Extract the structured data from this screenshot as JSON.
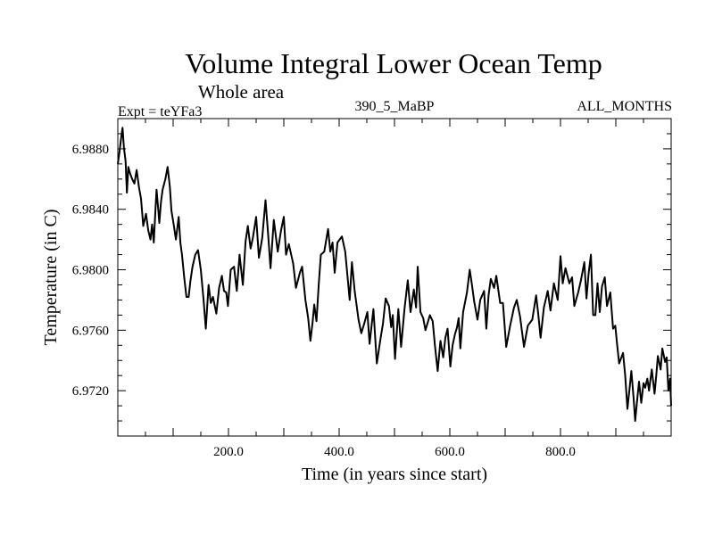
{
  "chart_data": {
    "type": "line",
    "title": "Volume Integral Lower Ocean Temp",
    "subtitle": "Whole area",
    "header_left": "Expt = teYFa3",
    "header_center": "390_5_MaBP",
    "header_right": "ALL_MONTHS",
    "xlabel": "Time (in years since start)",
    "ylabel": "Temperature (in C)",
    "xlim": [
      0,
      1000
    ],
    "ylim": [
      6.969,
      6.99
    ],
    "x_major_ticks": [
      200,
      400,
      600,
      800
    ],
    "x_tick_labels": [
      "200.0",
      "400.0",
      "600.0",
      "800.0"
    ],
    "x_minor_step": 50,
    "y_major_ticks": [
      6.988,
      6.984,
      6.98,
      6.976,
      6.972
    ],
    "y_tick_labels": [
      "6.9880",
      "6.9840",
      "6.9800",
      "6.9760",
      "6.9720"
    ],
    "y_minor_step": 0.001,
    "grid": false,
    "line_color": "#000000",
    "series": [
      {
        "name": "Volume Integral Lower Ocean Temp",
        "x": [
          0,
          3,
          6,
          8.5,
          11,
          14,
          16.5,
          19,
          22,
          26,
          30,
          34,
          38,
          42,
          46,
          51,
          55,
          59,
          62,
          65,
          68,
          70,
          73,
          75,
          78,
          81,
          86,
          90,
          94,
          97,
          101,
          105,
          110,
          113,
          116,
          120,
          124,
          128,
          131,
          135,
          140,
          145,
          150,
          155,
          159,
          164,
          168,
          172,
          178,
          183,
          188,
          192,
          196,
          199,
          204,
          210,
          215,
          220,
          226,
          231,
          235,
          240,
          244,
          250,
          255,
          261,
          267,
          272,
          276,
          282,
          289,
          295,
          300,
          304,
          309,
          317,
          322,
          329,
          333,
          339,
          344,
          348,
          352,
          355,
          359,
          363,
          367,
          373,
          380,
          384,
          388,
          392,
          397,
          401,
          405,
          411,
          415,
          419,
          423,
          428,
          435,
          440,
          445,
          451,
          455,
          462,
          468,
          475,
          479,
          484,
          490,
          494,
          497,
          501,
          507,
          512,
          518,
          524,
          529,
          535,
          539,
          542,
          547,
          552,
          556,
          564,
          569,
          573,
          578,
          583,
          588,
          592,
          596,
          601,
          605,
          609,
          613,
          616,
          619,
          624,
          631,
          636,
          640,
          644,
          650,
          655,
          662,
          666,
          670,
          674,
          680,
          684,
          691,
          696,
          702,
          709,
          716,
          721,
          727,
          734,
          741,
          749,
          756,
          760,
          764,
          770,
          777,
          782,
          788,
          795,
          800,
          804,
          809,
          816,
          821,
          825,
          832,
          837,
          843,
          847,
          851,
          855,
          859,
          863,
          867,
          871,
          875,
          880,
          884,
          890,
          895,
          899,
          902,
          906,
          913,
          917,
          921,
          925,
          928,
          932,
          935,
          938,
          942,
          946,
          950,
          953,
          957,
          960,
          965,
          970,
          973,
          976,
          981,
          984,
          989,
          992,
          995,
          998,
          1000
        ],
        "y": [
          6.987,
          6.9878,
          6.9887,
          6.9894,
          6.9881,
          6.9872,
          6.9851,
          6.9868,
          6.9864,
          6.986,
          6.9857,
          6.9866,
          6.9855,
          6.9847,
          6.9829,
          6.9837,
          6.9826,
          6.982,
          6.983,
          6.9818,
          6.984,
          6.9853,
          6.984,
          6.9831,
          6.9845,
          6.9853,
          6.986,
          6.9868,
          6.9855,
          6.9839,
          6.983,
          6.982,
          6.9835,
          6.9818,
          6.981,
          6.9795,
          6.9782,
          6.9782,
          6.9792,
          6.9802,
          6.981,
          6.9813,
          6.98,
          6.978,
          6.9761,
          6.979,
          6.9778,
          6.9782,
          6.9771,
          6.9788,
          6.9796,
          6.9786,
          6.9785,
          6.9776,
          6.98,
          6.9802,
          6.9786,
          6.981,
          6.979,
          6.9819,
          6.9829,
          6.9814,
          6.9821,
          6.9835,
          6.9808,
          6.9821,
          6.9846,
          6.9822,
          6.9801,
          6.9833,
          6.9812,
          6.9826,
          6.9835,
          6.981,
          6.9817,
          6.9804,
          6.9788,
          6.9798,
          6.9802,
          6.978,
          6.9768,
          6.9753,
          6.9765,
          6.9777,
          6.9766,
          6.979,
          6.981,
          6.9812,
          6.9827,
          6.9812,
          6.9818,
          6.9798,
          6.9818,
          6.982,
          6.9822,
          6.9812,
          6.9796,
          6.978,
          6.9805,
          6.9786,
          6.9767,
          6.9758,
          6.9764,
          6.9772,
          6.9751,
          6.9774,
          6.9738,
          6.9755,
          6.9764,
          6.9781,
          6.9776,
          6.9762,
          6.977,
          6.9741,
          6.9774,
          6.9749,
          6.9774,
          6.9793,
          6.9772,
          6.9787,
          6.9775,
          6.9802,
          6.9772,
          6.9768,
          6.976,
          6.977,
          6.9766,
          6.975,
          6.9733,
          6.9753,
          6.9742,
          6.9755,
          6.9761,
          6.9736,
          6.975,
          6.9757,
          6.9762,
          6.9768,
          6.9748,
          6.9772,
          6.9785,
          6.98,
          6.979,
          6.9779,
          6.9767,
          6.978,
          6.9786,
          6.9761,
          6.9783,
          6.9794,
          6.9788,
          6.9796,
          6.9778,
          6.9778,
          6.9749,
          6.9763,
          6.9775,
          6.978,
          6.9769,
          6.9749,
          6.9763,
          6.9767,
          6.9783,
          6.977,
          6.9755,
          6.9775,
          6.9786,
          6.9773,
          6.9791,
          6.978,
          6.9809,
          6.9791,
          6.9801,
          6.9791,
          6.9795,
          6.9776,
          6.9785,
          6.9793,
          6.9805,
          6.9781,
          6.9798,
          6.981,
          6.977,
          6.977,
          6.9791,
          6.9772,
          6.9789,
          6.9795,
          6.9776,
          6.9785,
          6.9761,
          6.9763,
          6.9752,
          6.9738,
          6.9745,
          6.973,
          6.9708,
          6.9722,
          6.9733,
          6.9716,
          6.97,
          6.9712,
          6.9726,
          6.9712,
          6.9725,
          6.9722,
          6.9728,
          6.972,
          6.9734,
          6.9718,
          6.973,
          6.9743,
          6.9734,
          6.9748,
          6.9739,
          6.9742,
          6.972,
          6.9728,
          6.971
        ]
      }
    ]
  }
}
